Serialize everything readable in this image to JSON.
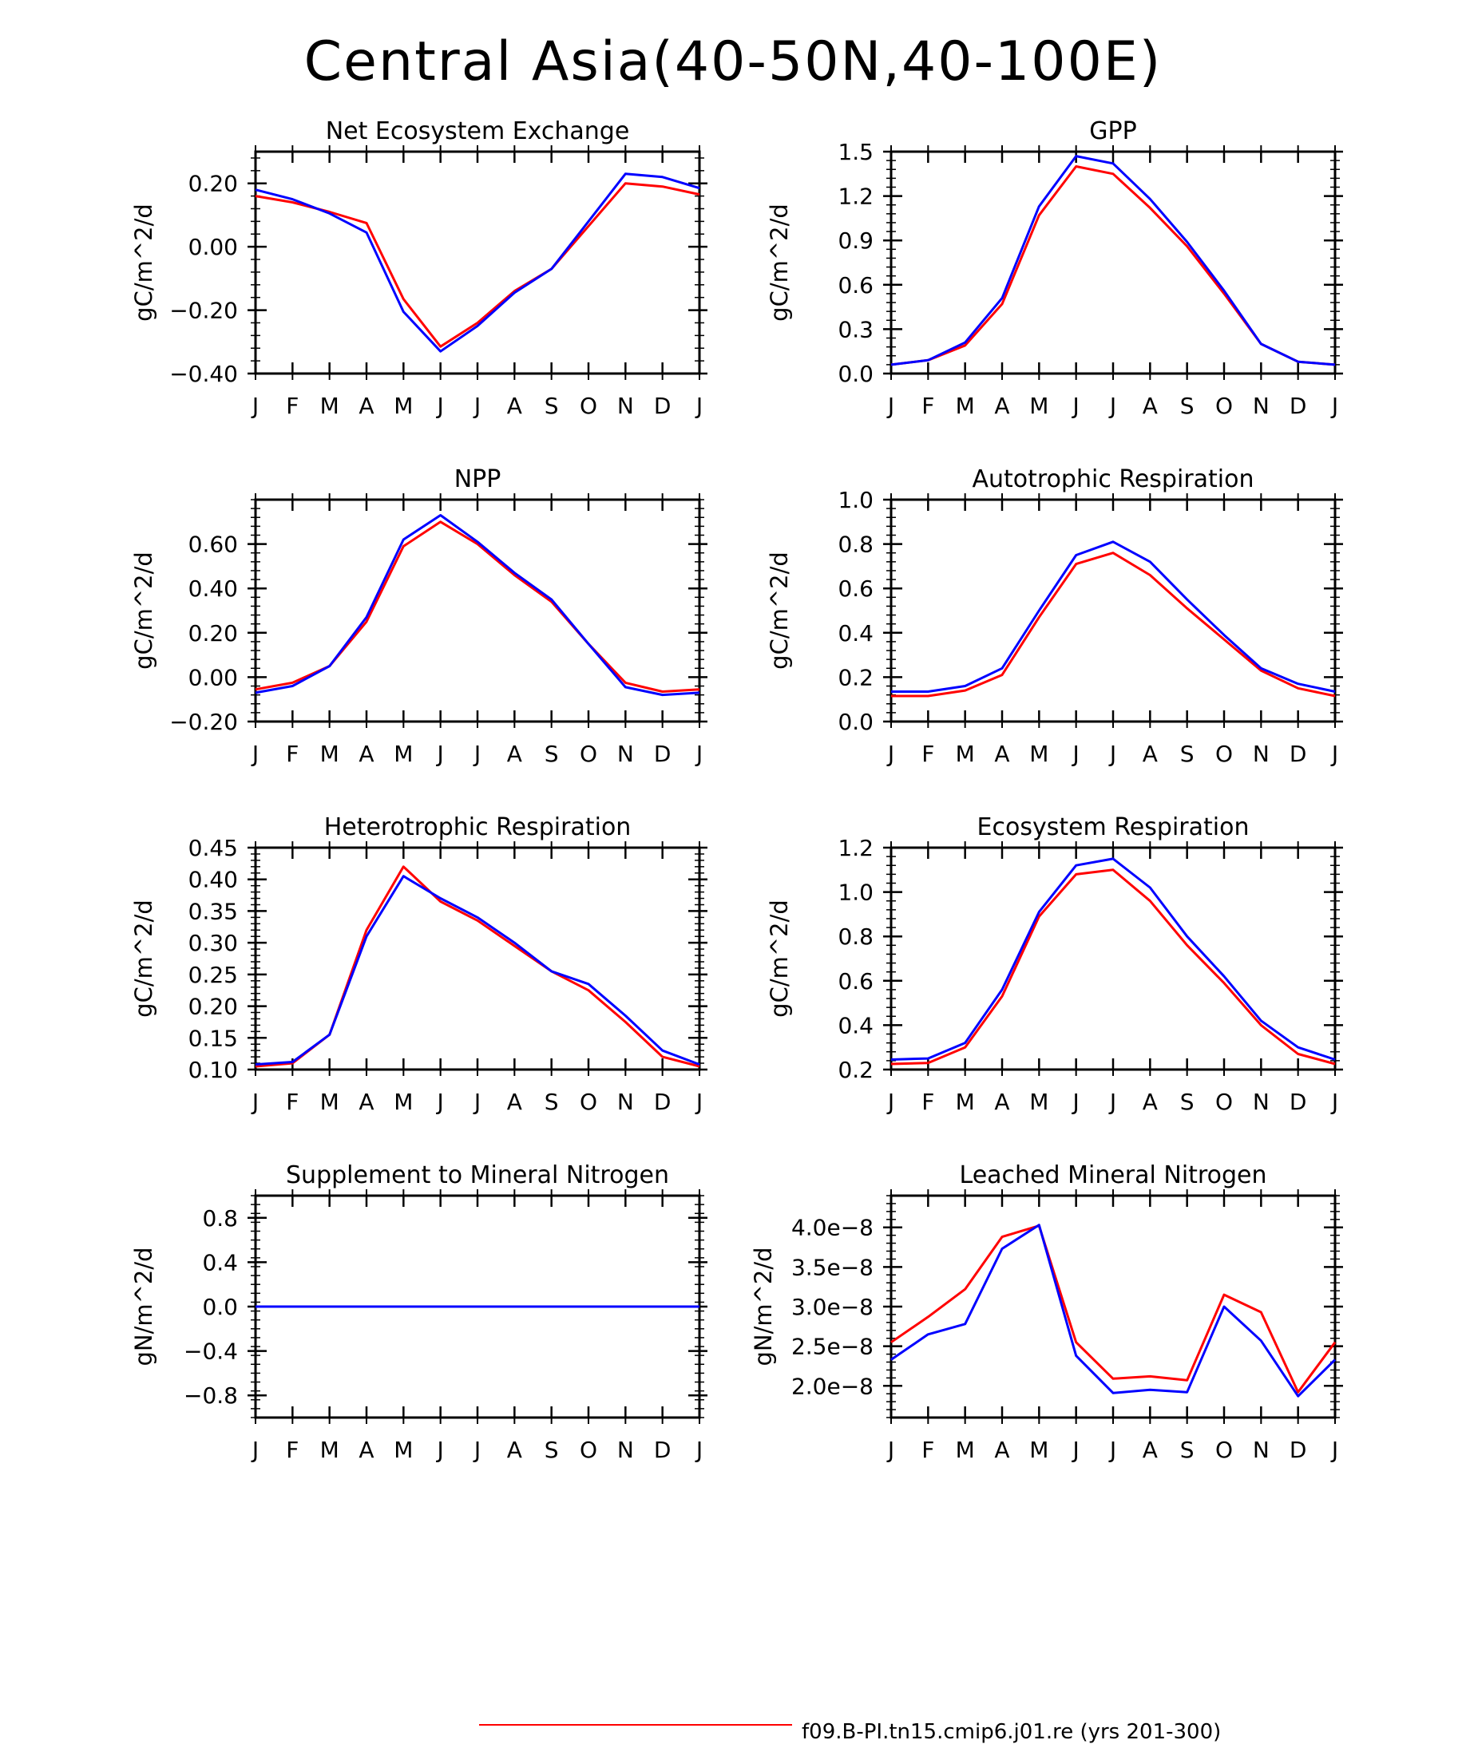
{
  "title": "Central Asia(40-50N,40-100E)",
  "legend": {
    "entries": [
      {
        "label": "f09.B-PI.tn15.cmip6.j01.re (yrs 201-300)",
        "color": "#ff0000"
      }
    ]
  },
  "chart_data": [
    {
      "type": "line",
      "title": "Net Ecosystem Exchange",
      "ylabel": "gC/m^2/d",
      "ylim": [
        -0.4,
        0.3
      ],
      "yticks": [
        -0.4,
        -0.2,
        0.0,
        0.2
      ],
      "yticklabels": [
        "−0.40",
        "−0.20",
        "0.00",
        "0.20"
      ],
      "categories": [
        "J",
        "F",
        "M",
        "A",
        "M",
        "J",
        "J",
        "A",
        "S",
        "O",
        "N",
        "D",
        "J"
      ],
      "series": [
        {
          "color": "#ff0000",
          "values": [
            0.16,
            0.14,
            0.11,
            0.075,
            -0.165,
            -0.315,
            -0.24,
            -0.14,
            -0.07,
            0.065,
            0.2,
            0.19,
            0.165
          ]
        },
        {
          "color": "#0000ff",
          "values": [
            0.18,
            0.15,
            0.105,
            0.045,
            -0.205,
            -0.33,
            -0.25,
            -0.145,
            -0.07,
            0.08,
            0.23,
            0.22,
            0.185
          ]
        }
      ]
    },
    {
      "type": "line",
      "title": "GPP",
      "ylabel": "gC/m^2/d",
      "ylim": [
        0.0,
        1.5
      ],
      "yticks": [
        0.0,
        0.3,
        0.6,
        0.9,
        1.2,
        1.5
      ],
      "yticklabels": [
        "0.0",
        "0.3",
        "0.6",
        "0.9",
        "1.2",
        "1.5"
      ],
      "categories": [
        "J",
        "F",
        "M",
        "A",
        "M",
        "J",
        "J",
        "A",
        "S",
        "O",
        "N",
        "D",
        "J"
      ],
      "series": [
        {
          "color": "#ff0000",
          "values": [
            0.06,
            0.09,
            0.19,
            0.47,
            1.07,
            1.4,
            1.35,
            1.12,
            0.86,
            0.54,
            0.2,
            0.08,
            0.06
          ]
        },
        {
          "color": "#0000ff",
          "values": [
            0.06,
            0.09,
            0.21,
            0.51,
            1.13,
            1.47,
            1.42,
            1.18,
            0.89,
            0.56,
            0.2,
            0.08,
            0.06
          ]
        }
      ]
    },
    {
      "type": "line",
      "title": "NPP",
      "ylabel": "gC/m^2/d",
      "ylim": [
        -0.2,
        0.8
      ],
      "yticks": [
        -0.2,
        0.0,
        0.2,
        0.4,
        0.6
      ],
      "yticklabels": [
        "−0.20",
        "0.00",
        "0.20",
        "0.40",
        "0.60"
      ],
      "categories": [
        "J",
        "F",
        "M",
        "A",
        "M",
        "J",
        "J",
        "A",
        "S",
        "O",
        "N",
        "D",
        "J"
      ],
      "series": [
        {
          "color": "#ff0000",
          "values": [
            -0.055,
            -0.025,
            0.05,
            0.25,
            0.59,
            0.7,
            0.6,
            0.46,
            0.34,
            0.15,
            -0.025,
            -0.065,
            -0.055
          ]
        },
        {
          "color": "#0000ff",
          "values": [
            -0.07,
            -0.04,
            0.05,
            0.27,
            0.62,
            0.73,
            0.61,
            0.47,
            0.35,
            0.15,
            -0.045,
            -0.08,
            -0.07
          ]
        }
      ]
    },
    {
      "type": "line",
      "title": "Autotrophic Respiration",
      "ylabel": "gC/m^2/d",
      "ylim": [
        0.0,
        1.0
      ],
      "yticks": [
        0.0,
        0.2,
        0.4,
        0.6,
        0.8,
        1.0
      ],
      "yticklabels": [
        "0.0",
        "0.2",
        "0.4",
        "0.6",
        "0.8",
        "1.0"
      ],
      "categories": [
        "J",
        "F",
        "M",
        "A",
        "M",
        "J",
        "J",
        "A",
        "S",
        "O",
        "N",
        "D",
        "J"
      ],
      "series": [
        {
          "color": "#ff0000",
          "values": [
            0.115,
            0.115,
            0.14,
            0.21,
            0.47,
            0.71,
            0.76,
            0.66,
            0.51,
            0.37,
            0.23,
            0.15,
            0.115
          ]
        },
        {
          "color": "#0000ff",
          "values": [
            0.135,
            0.135,
            0.16,
            0.24,
            0.5,
            0.75,
            0.81,
            0.72,
            0.55,
            0.39,
            0.24,
            0.17,
            0.135
          ]
        }
      ]
    },
    {
      "type": "line",
      "title": "Heterotrophic Respiration",
      "ylabel": "gC/m^2/d",
      "ylim": [
        0.1,
        0.45
      ],
      "yticks": [
        0.1,
        0.15,
        0.2,
        0.25,
        0.3,
        0.35,
        0.4,
        0.45
      ],
      "yticklabels": [
        "0.10",
        "0.15",
        "0.20",
        "0.25",
        "0.30",
        "0.35",
        "0.40",
        "0.45"
      ],
      "categories": [
        "J",
        "F",
        "M",
        "A",
        "M",
        "J",
        "J",
        "A",
        "S",
        "O",
        "N",
        "D",
        "J"
      ],
      "series": [
        {
          "color": "#ff0000",
          "values": [
            0.105,
            0.11,
            0.155,
            0.32,
            0.42,
            0.365,
            0.335,
            0.295,
            0.255,
            0.225,
            0.175,
            0.12,
            0.105
          ]
        },
        {
          "color": "#0000ff",
          "values": [
            0.108,
            0.112,
            0.155,
            0.31,
            0.405,
            0.37,
            0.34,
            0.3,
            0.255,
            0.235,
            0.185,
            0.13,
            0.108
          ]
        }
      ]
    },
    {
      "type": "line",
      "title": "Ecosystem Respiration",
      "ylabel": "gC/m^2/d",
      "ylim": [
        0.2,
        1.2
      ],
      "yticks": [
        0.2,
        0.4,
        0.6,
        0.8,
        1.0,
        1.2
      ],
      "yticklabels": [
        "0.2",
        "0.4",
        "0.6",
        "0.8",
        "1.0",
        "1.2"
      ],
      "categories": [
        "J",
        "F",
        "M",
        "A",
        "M",
        "J",
        "J",
        "A",
        "S",
        "O",
        "N",
        "D",
        "J"
      ],
      "series": [
        {
          "color": "#ff0000",
          "values": [
            0.225,
            0.23,
            0.3,
            0.53,
            0.89,
            1.08,
            1.1,
            0.96,
            0.76,
            0.59,
            0.4,
            0.27,
            0.225
          ]
        },
        {
          "color": "#0000ff",
          "values": [
            0.245,
            0.25,
            0.32,
            0.56,
            0.91,
            1.12,
            1.15,
            1.02,
            0.8,
            0.62,
            0.42,
            0.3,
            0.245
          ]
        }
      ]
    },
    {
      "type": "line",
      "title": "Supplement to Mineral Nitrogen",
      "ylabel": "gN/m^2/d",
      "ylim": [
        -1.0,
        1.0
      ],
      "yticks": [
        -0.8,
        -0.4,
        0.0,
        0.4,
        0.8
      ],
      "yticklabels": [
        "−0.8",
        "−0.4",
        "0.0",
        "0.4",
        "0.8"
      ],
      "categories": [
        "J",
        "F",
        "M",
        "A",
        "M",
        "J",
        "J",
        "A",
        "S",
        "O",
        "N",
        "D",
        "J"
      ],
      "series": [
        {
          "color": "#ff0000",
          "values": [
            0,
            0,
            0,
            0,
            0,
            0,
            0,
            0,
            0,
            0,
            0,
            0,
            0
          ]
        },
        {
          "color": "#0000ff",
          "values": [
            0,
            0,
            0,
            0,
            0,
            0,
            0,
            0,
            0,
            0,
            0,
            0,
            0
          ]
        }
      ]
    },
    {
      "type": "line",
      "title": "Leached Mineral Nitrogen",
      "ylabel": "gN/m^2/d",
      "ylim": [
        1.6e-08,
        4.4e-08
      ],
      "yticks": [
        2e-08,
        2.5e-08,
        3e-08,
        3.5e-08,
        4e-08
      ],
      "yticklabels": [
        "2.0e−8",
        "2.5e−8",
        "3.0e−8",
        "3.5e−8",
        "4.0e−8"
      ],
      "categories": [
        "J",
        "F",
        "M",
        "A",
        "M",
        "J",
        "J",
        "A",
        "S",
        "O",
        "N",
        "D",
        "J"
      ],
      "series": [
        {
          "color": "#ff0000",
          "values": [
            2.55e-08,
            2.87e-08,
            3.22e-08,
            3.88e-08,
            4.02e-08,
            2.55e-08,
            2.09e-08,
            2.12e-08,
            2.07e-08,
            3.15e-08,
            2.93e-08,
            1.92e-08,
            2.55e-08
          ]
        },
        {
          "color": "#0000ff",
          "values": [
            2.33e-08,
            2.65e-08,
            2.78e-08,
            3.73e-08,
            4.03e-08,
            2.38e-08,
            1.91e-08,
            1.95e-08,
            1.92e-08,
            3e-08,
            2.57e-08,
            1.87e-08,
            2.33e-08
          ]
        }
      ]
    }
  ]
}
